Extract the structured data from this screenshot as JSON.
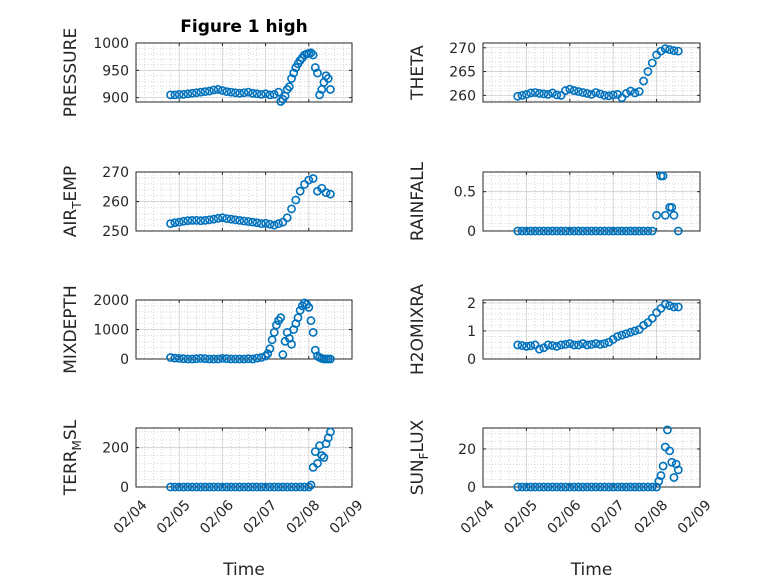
{
  "figure_title": "Figure 1 high",
  "colors": {
    "marker": "#0072BD",
    "axis": "#262626",
    "grid": "#cfcfcf"
  },
  "chart_data": [
    {
      "type": "scatter",
      "id": "pressure",
      "ylabel": "PRESSURE",
      "ylabel_main": "PRESSURE",
      "ylabel_sub": "",
      "ylabel_tail": "",
      "ylim": [
        892,
        1000
      ],
      "yticks": [
        900,
        950,
        1000
      ],
      "xlim": [
        0,
        5
      ],
      "xticks": [
        0,
        1,
        2,
        3,
        4,
        5
      ],
      "xticklabels": [
        "02/04",
        "02/05",
        "02/06",
        "02/07",
        "02/08",
        "02/09"
      ],
      "show_xticklabels": false,
      "xlabel": "",
      "series": [
        {
          "name": "PRESSURE",
          "x": [
            0.8,
            0.9,
            1.0,
            1.1,
            1.2,
            1.3,
            1.4,
            1.5,
            1.6,
            1.7,
            1.8,
            1.9,
            2.0,
            2.1,
            2.2,
            2.3,
            2.4,
            2.5,
            2.6,
            2.7,
            2.8,
            2.9,
            3.0,
            3.1,
            3.2,
            3.3,
            3.35,
            3.4,
            3.45,
            3.5,
            3.55,
            3.6,
            3.65,
            3.7,
            3.75,
            3.8,
            3.85,
            3.9,
            3.95,
            4.0,
            4.05,
            4.1,
            4.15,
            4.2,
            4.25,
            4.3,
            4.35,
            4.4,
            4.45,
            4.5
          ],
          "y": [
            905,
            905,
            906,
            906,
            907,
            908,
            909,
            910,
            911,
            912,
            914,
            915,
            913,
            911,
            910,
            909,
            908,
            909,
            910,
            908,
            907,
            906,
            907,
            905,
            906,
            910,
            893,
            897,
            903,
            915,
            920,
            935,
            945,
            955,
            962,
            968,
            973,
            978,
            980,
            981,
            982,
            978,
            955,
            945,
            905,
            915,
            928,
            940,
            935,
            915
          ]
        }
      ]
    },
    {
      "type": "scatter",
      "id": "theta",
      "ylabel": "THETA",
      "ylabel_main": "THETA",
      "ylabel_sub": "",
      "ylabel_tail": "",
      "ylim": [
        258.6,
        271
      ],
      "yticks": [
        260,
        265,
        270
      ],
      "xlim": [
        0,
        5
      ],
      "xticks": [
        0,
        1,
        2,
        3,
        4,
        5
      ],
      "xticklabels": [
        "02/04",
        "02/05",
        "02/06",
        "02/07",
        "02/08",
        "02/09"
      ],
      "show_xticklabels": false,
      "xlabel": "",
      "series": [
        {
          "name": "THETA",
          "x": [
            0.8,
            0.9,
            1.0,
            1.1,
            1.2,
            1.3,
            1.4,
            1.5,
            1.6,
            1.7,
            1.8,
            1.9,
            2.0,
            2.1,
            2.2,
            2.3,
            2.4,
            2.5,
            2.6,
            2.7,
            2.8,
            2.9,
            3.0,
            3.1,
            3.2,
            3.3,
            3.4,
            3.5,
            3.6,
            3.7,
            3.8,
            3.9,
            4.0,
            4.1,
            4.2,
            4.3,
            4.4,
            4.5
          ],
          "y": [
            259.8,
            260.0,
            260.2,
            260.5,
            260.6,
            260.4,
            260.3,
            260.2,
            260.5,
            260.1,
            260.0,
            261.0,
            261.3,
            261.0,
            260.8,
            260.6,
            260.4,
            260.2,
            260.6,
            260.3,
            260.0,
            259.9,
            260.1,
            260.2,
            259.5,
            260.4,
            260.9,
            260.5,
            260.8,
            263.0,
            265.0,
            266.8,
            268.5,
            269.3,
            269.8,
            269.6,
            269.4,
            269.3
          ]
        }
      ]
    },
    {
      "type": "scatter",
      "id": "airtemp",
      "ylabel": "AIR_TEMP",
      "ylabel_main": "AIR",
      "ylabel_sub": "T",
      "ylabel_tail": "EMP",
      "ylim": [
        250,
        270
      ],
      "yticks": [
        250,
        260,
        270
      ],
      "xlim": [
        0,
        5
      ],
      "xticks": [
        0,
        1,
        2,
        3,
        4,
        5
      ],
      "xticklabels": [
        "02/04",
        "02/05",
        "02/06",
        "02/07",
        "02/08",
        "02/09"
      ],
      "show_xticklabels": false,
      "xlabel": "",
      "series": [
        {
          "name": "AIR_TEMP",
          "x": [
            0.8,
            0.9,
            1.0,
            1.1,
            1.2,
            1.3,
            1.4,
            1.5,
            1.6,
            1.7,
            1.8,
            1.9,
            2.0,
            2.1,
            2.2,
            2.3,
            2.4,
            2.5,
            2.6,
            2.7,
            2.8,
            2.9,
            3.0,
            3.1,
            3.2,
            3.3,
            3.4,
            3.5,
            3.6,
            3.7,
            3.8,
            3.9,
            4.0,
            4.1,
            4.2,
            4.3,
            4.4,
            4.5
          ],
          "y": [
            252.5,
            252.8,
            253.0,
            253.3,
            253.5,
            253.6,
            253.6,
            253.5,
            253.6,
            253.8,
            254.0,
            254.3,
            254.5,
            254.2,
            254.0,
            253.8,
            253.6,
            253.4,
            253.2,
            253.0,
            252.8,
            252.5,
            252.6,
            252.3,
            252.0,
            252.5,
            253.0,
            254.5,
            257.5,
            260.5,
            263.5,
            265.8,
            267.3,
            267.8,
            263.5,
            264.5,
            263.0,
            262.5
          ]
        }
      ]
    },
    {
      "type": "scatter",
      "id": "rainfall",
      "ylabel": "RAINFALL",
      "ylabel_main": "RAINFALL",
      "ylabel_sub": "",
      "ylabel_tail": "",
      "ylim": [
        0,
        0.75
      ],
      "yticks": [
        0,
        0.5
      ],
      "xlim": [
        0,
        5
      ],
      "xticks": [
        0,
        1,
        2,
        3,
        4,
        5
      ],
      "xticklabels": [
        "02/04",
        "02/05",
        "02/06",
        "02/07",
        "02/08",
        "02/09"
      ],
      "show_xticklabels": false,
      "xlabel": "",
      "series": [
        {
          "name": "RAINFALL",
          "x": [
            0.8,
            0.9,
            1.0,
            1.1,
            1.2,
            1.3,
            1.4,
            1.5,
            1.6,
            1.7,
            1.8,
            1.9,
            2.0,
            2.1,
            2.2,
            2.3,
            2.4,
            2.5,
            2.6,
            2.7,
            2.8,
            2.9,
            3.0,
            3.1,
            3.2,
            3.3,
            3.4,
            3.5,
            3.6,
            3.7,
            3.8,
            3.9,
            4.0,
            4.1,
            4.15,
            4.2,
            4.3,
            4.35,
            4.4,
            4.5
          ],
          "y": [
            0,
            0,
            0,
            0,
            0,
            0,
            0,
            0,
            0,
            0,
            0,
            0,
            0,
            0,
            0,
            0,
            0,
            0,
            0,
            0,
            0,
            0,
            0,
            0,
            0,
            0,
            0,
            0,
            0,
            0,
            0,
            0,
            0.2,
            0.7,
            0.7,
            0.2,
            0.3,
            0.3,
            0.2,
            0
          ]
        }
      ]
    },
    {
      "type": "scatter",
      "id": "mixdepth",
      "ylabel": "MIXDEPTH",
      "ylabel_main": "MIXDEPTH",
      "ylabel_sub": "",
      "ylabel_tail": "",
      "ylim": [
        0,
        2000
      ],
      "yticks": [
        0,
        1000,
        2000
      ],
      "xlim": [
        0,
        5
      ],
      "xticks": [
        0,
        1,
        2,
        3,
        4,
        5
      ],
      "xticklabels": [
        "02/04",
        "02/05",
        "02/06",
        "02/07",
        "02/08",
        "02/09"
      ],
      "show_xticklabels": false,
      "xlabel": "",
      "series": [
        {
          "name": "MIXDEPTH",
          "x": [
            0.8,
            0.9,
            1.0,
            1.1,
            1.2,
            1.3,
            1.4,
            1.5,
            1.6,
            1.7,
            1.8,
            1.9,
            2.0,
            2.1,
            2.2,
            2.3,
            2.4,
            2.5,
            2.6,
            2.7,
            2.8,
            2.9,
            3.0,
            3.05,
            3.1,
            3.15,
            3.2,
            3.25,
            3.3,
            3.35,
            3.4,
            3.45,
            3.5,
            3.55,
            3.6,
            3.65,
            3.7,
            3.75,
            3.8,
            3.85,
            3.9,
            3.95,
            4.0,
            4.05,
            4.1,
            4.15,
            4.2,
            4.25,
            4.3,
            4.35,
            4.4,
            4.45,
            4.5
          ],
          "y": [
            50,
            30,
            20,
            10,
            0,
            0,
            10,
            20,
            10,
            0,
            0,
            0,
            20,
            10,
            0,
            0,
            0,
            0,
            10,
            0,
            30,
            50,
            100,
            180,
            350,
            650,
            900,
            1150,
            1300,
            1400,
            150,
            600,
            900,
            700,
            500,
            1000,
            1200,
            1400,
            1650,
            1800,
            1900,
            1850,
            1750,
            1300,
            900,
            300,
            100,
            50,
            20,
            0,
            0,
            0,
            0
          ]
        }
      ]
    },
    {
      "type": "scatter",
      "id": "h2omixra",
      "ylabel": "H2OMIXRA",
      "ylabel_main": "H2OMIXRA",
      "ylabel_sub": "",
      "ylabel_tail": "",
      "ylim": [
        0,
        2.1
      ],
      "yticks": [
        0,
        1,
        2
      ],
      "xlim": [
        0,
        5
      ],
      "xticks": [
        0,
        1,
        2,
        3,
        4,
        5
      ],
      "xticklabels": [
        "02/04",
        "02/05",
        "02/06",
        "02/07",
        "02/08",
        "02/09"
      ],
      "show_xticklabels": false,
      "xlabel": "",
      "series": [
        {
          "name": "H2OMIXRA",
          "x": [
            0.8,
            0.9,
            1.0,
            1.1,
            1.2,
            1.3,
            1.4,
            1.5,
            1.6,
            1.7,
            1.8,
            1.9,
            2.0,
            2.1,
            2.2,
            2.3,
            2.4,
            2.5,
            2.6,
            2.7,
            2.8,
            2.9,
            3.0,
            3.1,
            3.2,
            3.3,
            3.4,
            3.5,
            3.6,
            3.7,
            3.8,
            3.9,
            4.0,
            4.1,
            4.2,
            4.3,
            4.4,
            4.5
          ],
          "y": [
            0.5,
            0.48,
            0.45,
            0.47,
            0.5,
            0.35,
            0.4,
            0.5,
            0.48,
            0.45,
            0.5,
            0.52,
            0.55,
            0.5,
            0.5,
            0.55,
            0.5,
            0.52,
            0.55,
            0.52,
            0.55,
            0.6,
            0.7,
            0.8,
            0.85,
            0.9,
            0.95,
            1.0,
            1.05,
            1.2,
            1.3,
            1.45,
            1.65,
            1.8,
            1.95,
            1.9,
            1.85,
            1.85
          ]
        }
      ]
    },
    {
      "type": "scatter",
      "id": "terrmsl",
      "ylabel": "TERR_MSL",
      "ylabel_main": "TERR",
      "ylabel_sub": "M",
      "ylabel_tail": "SL",
      "ylim": [
        0,
        300
      ],
      "yticks": [
        0,
        200
      ],
      "xlim": [
        0,
        5
      ],
      "xticks": [
        0,
        1,
        2,
        3,
        4,
        5
      ],
      "xticklabels": [
        "02/04",
        "02/05",
        "02/06",
        "02/07",
        "02/08",
        "02/09"
      ],
      "show_xticklabels": true,
      "xlabel": "Time",
      "series": [
        {
          "name": "TERR_MSL",
          "x": [
            0.8,
            0.9,
            1.0,
            1.1,
            1.2,
            1.3,
            1.4,
            1.5,
            1.6,
            1.7,
            1.8,
            1.9,
            2.0,
            2.1,
            2.2,
            2.3,
            2.4,
            2.5,
            2.6,
            2.7,
            2.8,
            2.9,
            3.0,
            3.1,
            3.2,
            3.3,
            3.4,
            3.5,
            3.6,
            3.7,
            3.8,
            3.9,
            4.0,
            4.05,
            4.1,
            4.15,
            4.2,
            4.25,
            4.3,
            4.35,
            4.4,
            4.45,
            4.5
          ],
          "y": [
            0,
            0,
            0,
            0,
            0,
            0,
            0,
            0,
            0,
            0,
            0,
            0,
            0,
            0,
            0,
            0,
            0,
            0,
            0,
            0,
            0,
            0,
            0,
            0,
            0,
            0,
            0,
            0,
            0,
            0,
            0,
            0,
            0,
            10,
            100,
            180,
            120,
            210,
            160,
            150,
            220,
            250,
            280
          ]
        }
      ]
    },
    {
      "type": "scatter",
      "id": "sunflux",
      "ylabel": "SUN_FLUX",
      "ylabel_main": "SUN",
      "ylabel_sub": "F",
      "ylabel_tail": "LUX",
      "ylim": [
        0,
        31
      ],
      "yticks": [
        0,
        20
      ],
      "xlim": [
        0,
        5
      ],
      "xticks": [
        0,
        1,
        2,
        3,
        4,
        5
      ],
      "xticklabels": [
        "02/04",
        "02/05",
        "02/06",
        "02/07",
        "02/08",
        "02/09"
      ],
      "show_xticklabels": true,
      "xlabel": "Time",
      "series": [
        {
          "name": "SUN_FLUX",
          "x": [
            0.8,
            0.9,
            1.0,
            1.1,
            1.2,
            1.3,
            1.4,
            1.5,
            1.6,
            1.7,
            1.8,
            1.9,
            2.0,
            2.1,
            2.2,
            2.3,
            2.4,
            2.5,
            2.6,
            2.7,
            2.8,
            2.9,
            3.0,
            3.1,
            3.2,
            3.3,
            3.4,
            3.5,
            3.6,
            3.7,
            3.8,
            3.9,
            4.0,
            4.05,
            4.1,
            4.15,
            4.2,
            4.25,
            4.3,
            4.35,
            4.4,
            4.45,
            4.5
          ],
          "y": [
            0,
            0,
            0,
            0,
            0,
            0,
            0,
            0,
            0,
            0,
            0,
            0,
            0,
            0,
            0,
            0,
            0,
            0,
            0,
            0,
            0,
            0,
            0,
            0,
            0,
            0,
            0,
            0,
            0,
            0,
            0,
            0,
            0,
            3,
            6,
            11,
            21,
            30,
            19,
            13,
            5,
            12,
            9
          ]
        }
      ]
    }
  ]
}
